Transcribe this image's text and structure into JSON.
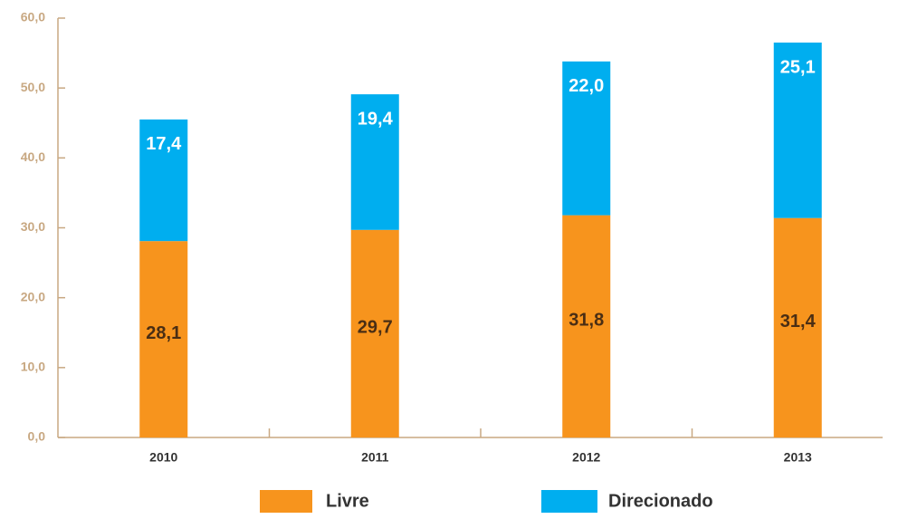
{
  "chart_data": {
    "type": "stacked_bar",
    "categories": [
      "2010",
      "2011",
      "2012",
      "2013"
    ],
    "series": [
      {
        "name": "Livre",
        "color": "#F7941D",
        "values": [
          28.1,
          29.7,
          31.8,
          31.4
        ],
        "value_labels": [
          "28,1",
          "29,7",
          "31,8",
          "31,4"
        ]
      },
      {
        "name": "Direcionado",
        "color": "#00AEEF",
        "values": [
          17.4,
          19.4,
          22.0,
          25.1
        ],
        "value_labels": [
          "17,4",
          "19,4",
          "22,0",
          "25,1"
        ]
      }
    ],
    "ylim": [
      0,
      60
    ],
    "yticks": [
      {
        "value": 0,
        "label": "0,0"
      },
      {
        "value": 10,
        "label": "10,0"
      },
      {
        "value": 20,
        "label": "20,0"
      },
      {
        "value": 30,
        "label": "30,0"
      },
      {
        "value": 40,
        "label": "40,0"
      },
      {
        "value": 50,
        "label": "50,0"
      },
      {
        "value": 60,
        "label": "60,0"
      }
    ],
    "legend": "bottom"
  }
}
